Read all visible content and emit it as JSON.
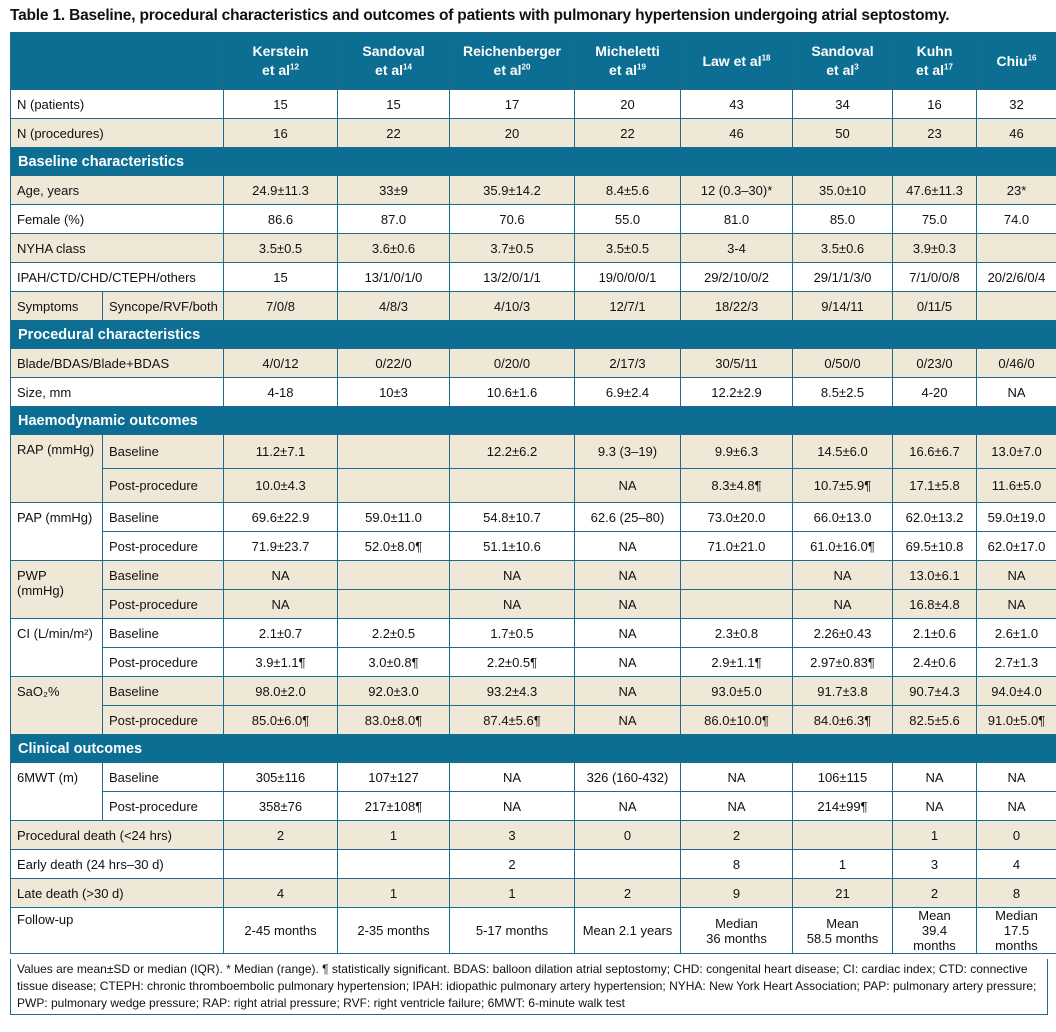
{
  "title": "Table 1. Baseline, procedural characteristics and outcomes of patients with pulmonary hypertension undergoing atrial septostomy.",
  "studies": [
    {
      "name": "Kerstein",
      "suffix": "et al",
      "ref": "12"
    },
    {
      "name": "Sandoval",
      "suffix": "et al",
      "ref": "14"
    },
    {
      "name": "Reichenberger",
      "suffix": "et al",
      "ref": "20"
    },
    {
      "name": "Micheletti",
      "suffix": "et al",
      "ref": "19"
    },
    {
      "name": "Law et al",
      "suffix": "",
      "ref": "18"
    },
    {
      "name": "Sandoval",
      "suffix": "et al",
      "ref": "3"
    },
    {
      "name": "Kuhn",
      "suffix": "et al",
      "ref": "17"
    },
    {
      "name": "Chiu",
      "suffix": "",
      "ref": "16"
    }
  ],
  "rows": {
    "n_patients": {
      "label": "N (patients)",
      "values": [
        "15",
        "15",
        "17",
        "20",
        "43",
        "34",
        "16",
        "32"
      ]
    },
    "n_procedures": {
      "label": "N (procedures)",
      "values": [
        "16",
        "22",
        "20",
        "22",
        "46",
        "50",
        "23",
        "46"
      ]
    },
    "baseline_header": "Baseline characteristics",
    "age": {
      "label": "Age, years",
      "values": [
        "24.9±11.3",
        "33±9",
        "35.9±14.2",
        "8.4±5.6",
        "12 (0.3–30)*",
        "35.0±10",
        "47.6±11.3",
        "23*"
      ]
    },
    "female": {
      "label": "Female (%)",
      "values": [
        "86.6",
        "87.0",
        "70.6",
        "55.0",
        "81.0",
        "85.0",
        "75.0",
        "74.0"
      ]
    },
    "nyha": {
      "label": "NYHA class",
      "values": [
        "3.5±0.5",
        "3.6±0.6",
        "3.7±0.5",
        "3.5±0.5",
        "3-4",
        "3.5±0.6",
        "3.9±0.3",
        ""
      ]
    },
    "etiology": {
      "label": "IPAH/CTD/CHD/CTEPH/others",
      "values": [
        "15",
        "13/1/0/1/0",
        "13/2/0/1/1",
        "19/0/0/0/1",
        "29/2/10/0/2",
        "29/1/1/3/0",
        "7/1/0/0/8",
        "20/2/6/0/4"
      ]
    },
    "symptoms": {
      "label": "Symptoms",
      "sublabel": "Syncope/RVF/both",
      "values": [
        "7/0/8",
        "4/8/3",
        "4/10/3",
        "12/7/1",
        "18/22/3",
        "9/14/11",
        "0/11/5",
        ""
      ]
    },
    "procedural_header": "Procedural characteristics",
    "technique": {
      "label": "Blade/BDAS/Blade+BDAS",
      "values": [
        "4/0/12",
        "0/22/0",
        "0/20/0",
        "2/17/3",
        "30/5/11",
        "0/50/0",
        "0/23/0",
        "0/46/0"
      ]
    },
    "size": {
      "label": "Size, mm",
      "values": [
        "4-18",
        "10±3",
        "10.6±1.6",
        "6.9±2.4",
        "12.2±2.9",
        "8.5±2.5",
        "4-20",
        "NA"
      ]
    },
    "haemo_header": "Haemodynamic outcomes",
    "baseline_label": "Baseline",
    "post_label": "Post-procedure",
    "rap": {
      "label": "RAP (mmHg)",
      "baseline": [
        "11.2±7.1",
        "",
        "12.2±6.2",
        "9.3 (3–19)",
        "9.9±6.3",
        "14.5±6.0",
        "16.6±6.7",
        "13.0±7.0"
      ],
      "post": [
        "10.0±4.3",
        "",
        "",
        "NA",
        "8.3±4.8¶",
        "10.7±5.9¶",
        "17.1±5.8",
        "11.6±5.0"
      ]
    },
    "pap": {
      "label": "PAP (mmHg)",
      "baseline": [
        "69.6±22.9",
        "59.0±11.0",
        "54.8±10.7",
        "62.6 (25–80)",
        "73.0±20.0",
        "66.0±13.0",
        "62.0±13.2",
        "59.0±19.0"
      ],
      "post": [
        "71.9±23.7",
        "52.0±8.0¶",
        "51.1±10.6",
        "NA",
        "71.0±21.0",
        "61.0±16.0¶",
        "69.5±10.8",
        "62.0±17.0"
      ]
    },
    "pwp": {
      "label": "PWP (mmHg)",
      "baseline": [
        "NA",
        "",
        "NA",
        "NA",
        "",
        "NA",
        "13.0±6.1",
        "NA"
      ],
      "post": [
        "NA",
        "",
        "NA",
        "NA",
        "",
        "NA",
        "16.8±4.8",
        "NA"
      ]
    },
    "ci": {
      "label": "CI (L/min/m²)",
      "baseline": [
        "2.1±0.7",
        "2.2±0.5",
        "1.7±0.5",
        "NA",
        "2.3±0.8",
        "2.26±0.43",
        "2.1±0.6",
        "2.6±1.0"
      ],
      "post": [
        "3.9±1.1¶",
        "3.0±0.8¶",
        "2.2±0.5¶",
        "NA",
        "2.9±1.1¶",
        "2.97±0.83¶",
        "2.4±0.6",
        "2.7±1.3"
      ]
    },
    "sao2": {
      "label": "SaO₂%",
      "baseline": [
        "98.0±2.0",
        "92.0±3.0",
        "93.2±4.3",
        "NA",
        "93.0±5.0",
        "91.7±3.8",
        "90.7±4.3",
        "94.0±4.0"
      ],
      "post": [
        "85.0±6.0¶",
        "83.0±8.0¶",
        "87.4±5.6¶",
        "NA",
        "86.0±10.0¶",
        "84.0±6.3¶",
        "82.5±5.6",
        "91.0±5.0¶"
      ]
    },
    "clinical_header": "Clinical outcomes",
    "mwt": {
      "label": "6MWT (m)",
      "baseline": [
        "305±116",
        "107±127",
        "NA",
        "326 (160-432)",
        "NA",
        "106±115",
        "NA",
        "NA"
      ],
      "post": [
        "358±76",
        "217±108¶",
        "NA",
        "NA",
        "NA",
        "214±99¶",
        "NA",
        "NA"
      ]
    },
    "proc_death": {
      "label": "Procedural death (<24 hrs)",
      "values": [
        "2",
        "1",
        "3",
        "0",
        "2",
        "",
        "1",
        "0"
      ]
    },
    "early_death": {
      "label": "Early death (24 hrs–30 d)",
      "values": [
        "",
        "",
        "2",
        "",
        "8",
        "1",
        "3",
        "4"
      ]
    },
    "late_death": {
      "label": "Late death (>30 d)",
      "values": [
        "4",
        "1",
        "1",
        "2",
        "9",
        "21",
        "2",
        "8"
      ]
    },
    "followup": {
      "label": "Follow-up",
      "values": [
        "2-45 months",
        "2-35 months",
        "5-17 months",
        "Mean 2.1 years",
        "Median 36 months",
        "Mean 58.5 months",
        "Mean 39.4 months",
        "Median 17.5 months"
      ]
    }
  },
  "footnote": "Values are mean±SD or median (IQR). * Median (range). ¶ statistically significant. BDAS: balloon dilation atrial septostomy; CHD: congenital heart disease; CI: cardiac index; CTD: connective tissue disease; CTEPH: chronic thromboembolic pulmonary hypertension; IPAH: idiopathic pulmonary artery hypertension; NYHA: New York Heart Association; PAP: pulmonary artery pressure; PWP: pulmonary wedge pressure; RAP: right atrial pressure; RVF: right ventricle failure; 6MWT: 6-minute walk test",
  "colors": {
    "header_bg": "#0d6e93",
    "shade_bg": "#efe8d6",
    "border": "#1f6a8f"
  }
}
